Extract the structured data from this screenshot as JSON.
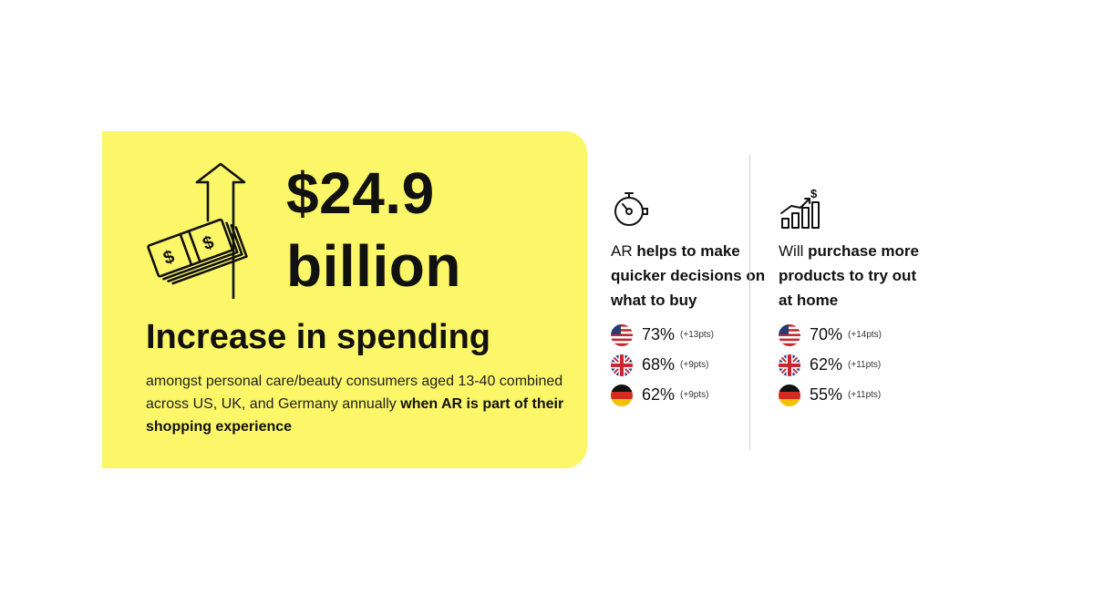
{
  "headline_stat": {
    "amount": "$24.9",
    "unit": "billion",
    "headline": "Increase in spending",
    "description": "amongst personal care/beauty consumers aged 13-40 combined across US, UK, and Germany annually",
    "description_bold": "when AR is part of their shopping experience"
  },
  "stats": [
    {
      "icon": "stopwatch-icon",
      "title_prefix": "AR",
      "title_bold": "helps to make quicker decisions on what to buy",
      "title_suffix": "",
      "rows": [
        {
          "country": "US",
          "percent": "73%",
          "delta": "(+13pts)"
        },
        {
          "country": "UK",
          "percent": "68%",
          "delta": "(+9pts)"
        },
        {
          "country": "Germany",
          "percent": "62%",
          "delta": "(+9pts)"
        }
      ]
    },
    {
      "icon": "growth-chart-icon",
      "title_prefix": "Will",
      "title_bold": "purchase more products to try out at home",
      "title_suffix": "",
      "rows": [
        {
          "country": "US",
          "percent": "70%",
          "delta": "(+14pts)"
        },
        {
          "country": "UK",
          "percent": "62%",
          "delta": "(+11pts)"
        },
        {
          "country": "Germany",
          "percent": "55%",
          "delta": "(+11pts)"
        }
      ]
    }
  ],
  "colors": {
    "card_background": "#fcf669",
    "text": "#111111",
    "divider": "#cfcfcf"
  }
}
